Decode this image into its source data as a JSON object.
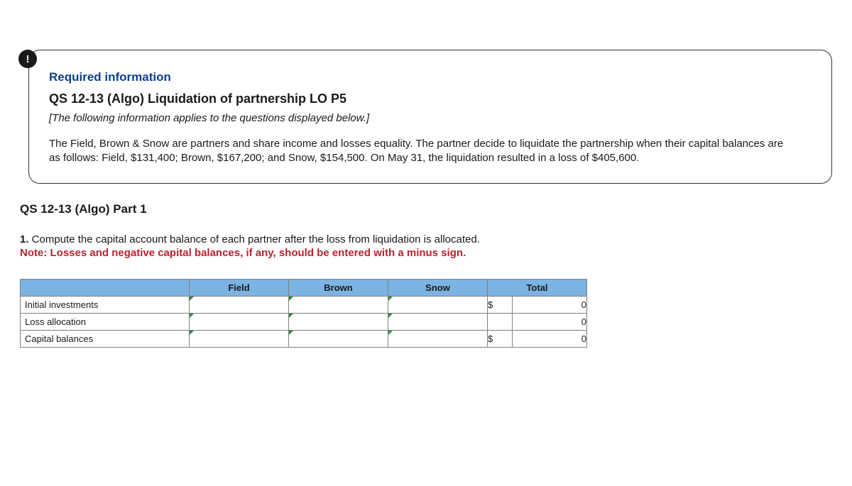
{
  "badge": {
    "glyph": "!"
  },
  "card": {
    "required_label": "Required information",
    "title": "QS 12-13 (Algo) Liquidation of partnership LO P5",
    "applies": "[The following information applies to the questions displayed below.]",
    "paragraph": "The Field, Brown & Snow are partners and share income and losses equality. The partner decide to liquidate the partnership when their capital balances are as follows: Field, $131,400; Brown, $167,200; and Snow, $154,500. On May 31, the liquidation resulted in a loss of $405,600."
  },
  "part_title": "QS 12-13 (Algo) Part 1",
  "instruction_number": "1.",
  "instruction_text": " Compute the capital account balance of each partner after the loss from liquidation is allocated.",
  "note_text": "Note: Losses and negative capital balances, if any, should be entered with a minus sign.",
  "table": {
    "header_row_blank": "",
    "columns": [
      "Field",
      "Brown",
      "Snow",
      "Total"
    ],
    "row_labels": [
      "Initial investments",
      "Loss allocation",
      "Capital balances"
    ],
    "totals": [
      {
        "currency": "$",
        "value": "0"
      },
      {
        "currency": "",
        "value": "0"
      },
      {
        "currency": "$",
        "value": "0"
      }
    ],
    "col_widths": {
      "row": 238,
      "partner": 140,
      "total_cur": 30,
      "total_val": 90
    },
    "header_bg": "#7bb3e3",
    "corner_color": "#2e8b3d",
    "border_color": "#808080"
  }
}
